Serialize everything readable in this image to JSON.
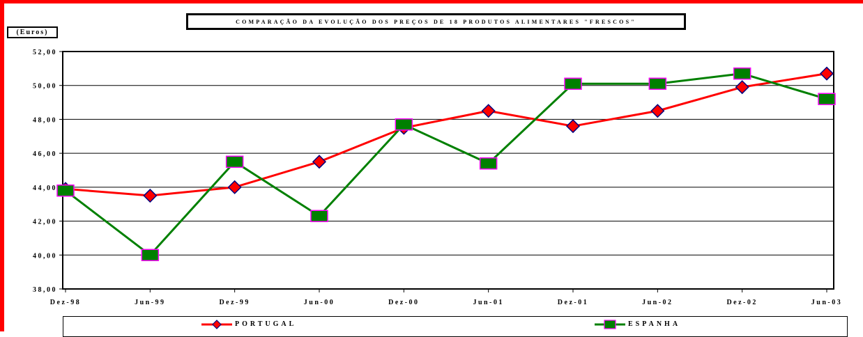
{
  "chart_data": {
    "type": "line",
    "title": "COMPARAÇÃO DA EVOLUÇÃO DOS PREÇOS DE 18 PRODUTOS ALIMENTARES \"FRESCOS\"",
    "ylabel": "(Euros)",
    "xlabel": "",
    "categories": [
      "Dez-98",
      "Jun-99",
      "Dez-99",
      "Jun-00",
      "Dez-00",
      "Jun-01",
      "Dez-01",
      "Jun-02",
      "Dez-02",
      "Jun-03"
    ],
    "ylim": [
      38,
      52
    ],
    "yticks": [
      38,
      40,
      42,
      44,
      46,
      48,
      50,
      52
    ],
    "ytick_labels": [
      "38,00",
      "40,00",
      "42,00",
      "44,00",
      "46,00",
      "48,00",
      "50,00",
      "52,00"
    ],
    "grid": true,
    "legend_position": "bottom",
    "series": [
      {
        "name": "PORTUGAL",
        "values": [
          43.9,
          43.5,
          44.0,
          45.5,
          47.5,
          48.5,
          47.6,
          48.5,
          49.9,
          50.7
        ],
        "color": "#ff0000",
        "marker": "diamond",
        "marker_fill": "#ff0000",
        "marker_edge": "#000080"
      },
      {
        "name": "ESPANHA",
        "values": [
          43.8,
          40.0,
          45.5,
          42.3,
          47.7,
          45.4,
          50.1,
          50.1,
          50.7,
          49.2
        ],
        "color": "#008000",
        "marker": "square",
        "marker_fill": "#008000",
        "marker_edge": "#ff00ff"
      }
    ]
  }
}
